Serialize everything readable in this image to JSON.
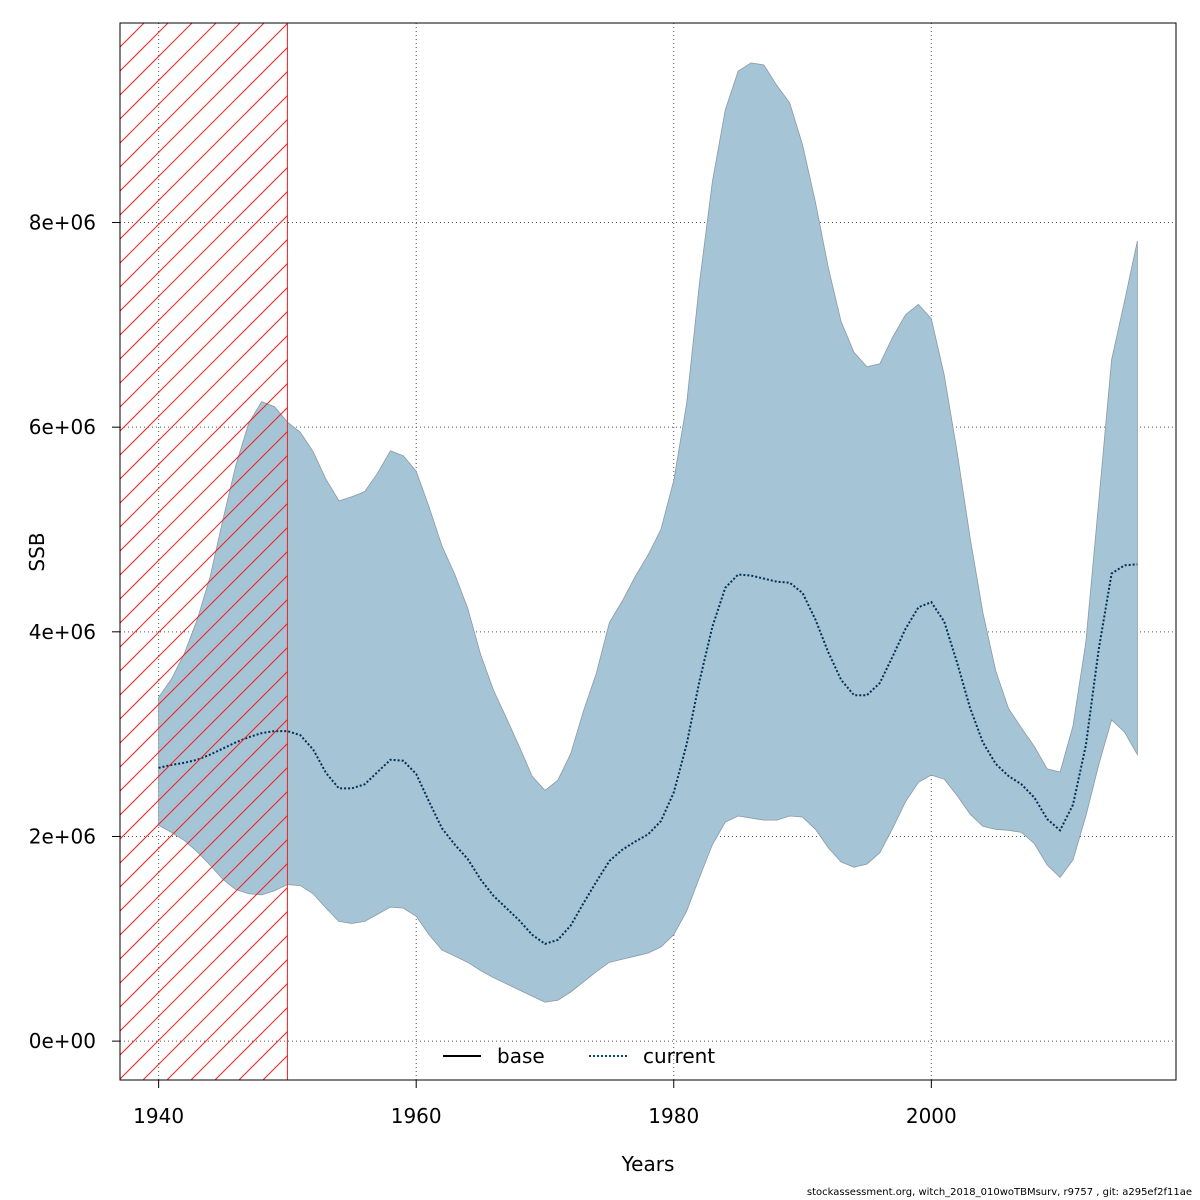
{
  "chart_data": {
    "type": "area",
    "xlabel": "Years",
    "ylabel": "SSB",
    "x_ticks": [
      1940,
      1960,
      1980,
      2000
    ],
    "y_ticks": [
      0,
      2000000,
      4000000,
      6000000,
      8000000
    ],
    "y_tick_labels": [
      "0e+00",
      "2e+06",
      "4e+06",
      "6e+06",
      "8e+06"
    ],
    "xlim": [
      1937,
      2019
    ],
    "ylim": [
      -380000,
      9950000
    ],
    "grid": true,
    "legend_position": "bottom-center",
    "legend": [
      {
        "label": "base",
        "style": "solid",
        "color": "#000000"
      },
      {
        "label": "current",
        "style": "dotted",
        "color": "#004a7a"
      }
    ],
    "hatched_range": [
      1937,
      1950
    ],
    "hatch_color": "#ee2222",
    "band_color": "#a5c4d6",
    "band_edge_color": "#8a9aa6",
    "line_color": "#003055",
    "x": [
      1940,
      1941,
      1942,
      1943,
      1944,
      1945,
      1946,
      1947,
      1948,
      1949,
      1950,
      1951,
      1952,
      1953,
      1954,
      1955,
      1956,
      1957,
      1958,
      1959,
      1960,
      1961,
      1962,
      1963,
      1964,
      1965,
      1966,
      1967,
      1968,
      1969,
      1970,
      1971,
      1972,
      1973,
      1974,
      1975,
      1976,
      1977,
      1978,
      1979,
      1980,
      1981,
      1982,
      1983,
      1984,
      1985,
      1986,
      1987,
      1988,
      1989,
      1990,
      1991,
      1992,
      1993,
      1994,
      1995,
      1996,
      1997,
      1998,
      1999,
      2000,
      2001,
      2002,
      2003,
      2004,
      2005,
      2006,
      2007,
      2008,
      2009,
      2010,
      2011,
      2012,
      2013,
      2014,
      2015,
      2016
    ],
    "series": [
      {
        "name": "current",
        "values": [
          2670000,
          2700000,
          2720000,
          2750000,
          2800000,
          2860000,
          2920000,
          2970000,
          3010000,
          3030000,
          3030000,
          2990000,
          2850000,
          2620000,
          2470000,
          2470000,
          2510000,
          2630000,
          2750000,
          2740000,
          2610000,
          2340000,
          2080000,
          1920000,
          1780000,
          1580000,
          1420000,
          1300000,
          1180000,
          1040000,
          950000,
          990000,
          1130000,
          1350000,
          1560000,
          1760000,
          1870000,
          1950000,
          2020000,
          2150000,
          2430000,
          2900000,
          3520000,
          4050000,
          4430000,
          4560000,
          4550000,
          4520000,
          4490000,
          4480000,
          4380000,
          4120000,
          3800000,
          3530000,
          3380000,
          3380000,
          3500000,
          3760000,
          4030000,
          4240000,
          4290000,
          4100000,
          3700000,
          3260000,
          2920000,
          2710000,
          2590000,
          2510000,
          2380000,
          2170000,
          2060000,
          2310000,
          2890000,
          3830000,
          4570000,
          4650000,
          4660000
        ]
      }
    ],
    "ci_upper": [
      3360000,
      3540000,
      3790000,
      4120000,
      4540000,
      5100000,
      5630000,
      6040000,
      6250000,
      6200000,
      6050000,
      5950000,
      5760000,
      5490000,
      5280000,
      5320000,
      5370000,
      5550000,
      5770000,
      5720000,
      5570000,
      5220000,
      4840000,
      4560000,
      4230000,
      3780000,
      3430000,
      3160000,
      2880000,
      2590000,
      2450000,
      2550000,
      2810000,
      3230000,
      3600000,
      4090000,
      4300000,
      4540000,
      4750000,
      5000000,
      5480000,
      6230000,
      7410000,
      8400000,
      9100000,
      9480000,
      9560000,
      9540000,
      9340000,
      9170000,
      8760000,
      8200000,
      7560000,
      7030000,
      6730000,
      6590000,
      6620000,
      6880000,
      7100000,
      7200000,
      7060000,
      6510000,
      5760000,
      4930000,
      4190000,
      3620000,
      3250000,
      3060000,
      2880000,
      2660000,
      2630000,
      3080000,
      3900000,
      5270000,
      6660000,
      7230000,
      7820000
    ],
    "ci_lower": [
      2110000,
      2040000,
      1960000,
      1850000,
      1720000,
      1580000,
      1480000,
      1440000,
      1430000,
      1470000,
      1530000,
      1520000,
      1440000,
      1300000,
      1170000,
      1150000,
      1170000,
      1240000,
      1310000,
      1300000,
      1220000,
      1040000,
      890000,
      830000,
      770000,
      690000,
      620000,
      560000,
      500000,
      440000,
      380000,
      400000,
      480000,
      580000,
      680000,
      770000,
      800000,
      830000,
      860000,
      920000,
      1040000,
      1270000,
      1600000,
      1920000,
      2140000,
      2200000,
      2180000,
      2160000,
      2160000,
      2200000,
      2190000,
      2070000,
      1890000,
      1750000,
      1700000,
      1730000,
      1840000,
      2080000,
      2340000,
      2530000,
      2600000,
      2560000,
      2400000,
      2220000,
      2100000,
      2070000,
      2060000,
      2040000,
      1930000,
      1720000,
      1600000,
      1770000,
      2200000,
      2700000,
      3140000,
      3020000,
      2800000
    ]
  },
  "footer": {
    "text": "stockassessment.org, witch_2018_010woTBMsurv, r9757 , git: a295ef2f11ae"
  }
}
